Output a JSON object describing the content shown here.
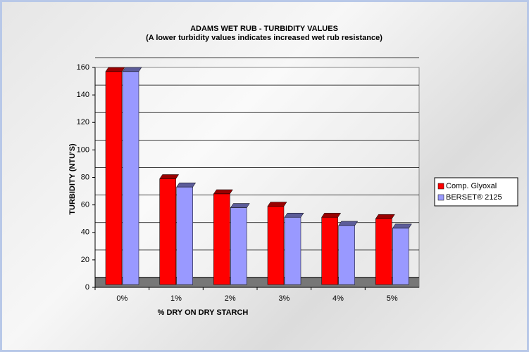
{
  "chart_data": {
    "type": "bar",
    "title": "ADAMS WET RUB - TURBIDITY VALUES",
    "subtitle": "(A lower turbidity values indicates increased wet rub resistance)",
    "x_label": "% DRY ON DRY STARCH",
    "y_label": "TURBIDITY (NTU'S)",
    "categories": [
      "0%",
      "1%",
      "2%",
      "3%",
      "4%",
      "5%"
    ],
    "series": [
      {
        "name": "Comp. Glyoxal",
        "color": "#ff0000",
        "values": [
          157,
          79,
          68,
          59,
          51,
          50
        ]
      },
      {
        "name": "BERSET® 2125",
        "color": "#9999ff",
        "values": [
          157,
          73,
          58,
          51,
          45,
          43
        ]
      }
    ],
    "ylim": [
      0,
      160
    ],
    "yticks": [
      0,
      20,
      40,
      60,
      80,
      100,
      120,
      140,
      160
    ],
    "grid": true
  }
}
